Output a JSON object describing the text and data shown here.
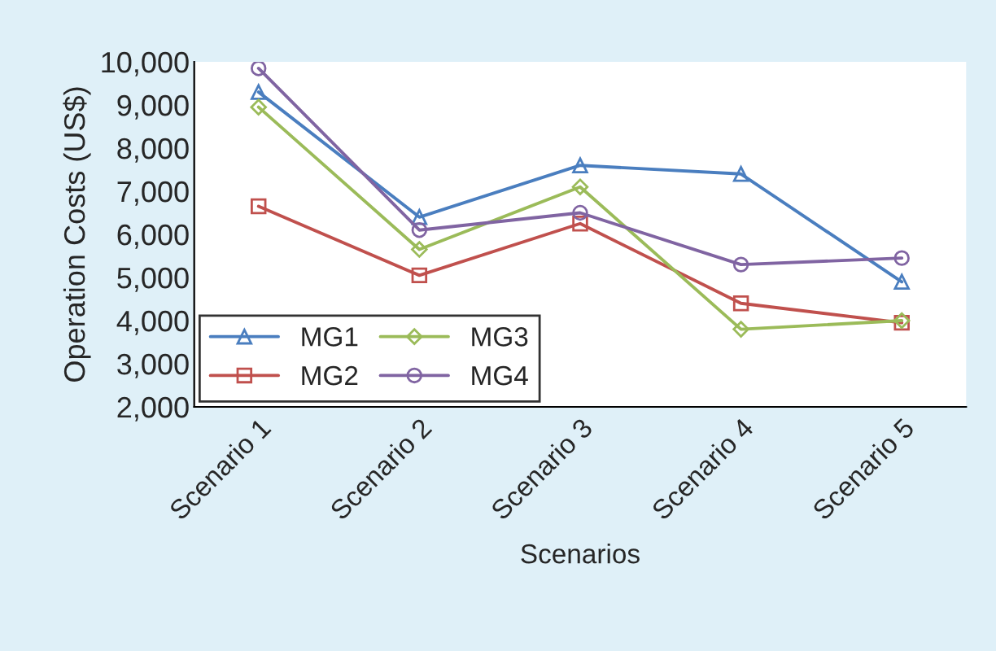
{
  "chart_data": {
    "type": "line",
    "xlabel": "Scenarios",
    "ylabel": "Operation Costs (US$)",
    "categories": [
      "Scenario 1",
      "Scenario 2",
      "Scenario 3",
      "Scenario 4",
      "Scenario 5"
    ],
    "series": [
      {
        "name": "MG1",
        "color": "#4a7ebf",
        "marker": "triangle",
        "values": [
          9300,
          6400,
          7600,
          7400,
          4900
        ]
      },
      {
        "name": "MG2",
        "color": "#c0504d",
        "marker": "square",
        "values": [
          6650,
          5050,
          6250,
          4400,
          3950
        ]
      },
      {
        "name": "MG3",
        "color": "#9bbb59",
        "marker": "diamond",
        "values": [
          8950,
          5650,
          7100,
          3800,
          4000
        ]
      },
      {
        "name": "MG4",
        "color": "#8064a2",
        "marker": "circle",
        "values": [
          9850,
          6100,
          6500,
          5300,
          5450
        ]
      }
    ],
    "ylim": [
      2000,
      10000
    ],
    "yticks": [
      {
        "value": 2000,
        "label": "2,000"
      },
      {
        "value": 3000,
        "label": "3,000"
      },
      {
        "value": 4000,
        "label": "4,000"
      },
      {
        "value": 5000,
        "label": "5,000"
      },
      {
        "value": 6000,
        "label": "6,000"
      },
      {
        "value": 7000,
        "label": "7,000"
      },
      {
        "value": 8000,
        "label": "8,000"
      },
      {
        "value": 9000,
        "label": "9,000"
      },
      {
        "value": 10000,
        "label": "10,000"
      }
    ],
    "grid": false,
    "legend": "bottom left",
    "line_style": "solid"
  }
}
